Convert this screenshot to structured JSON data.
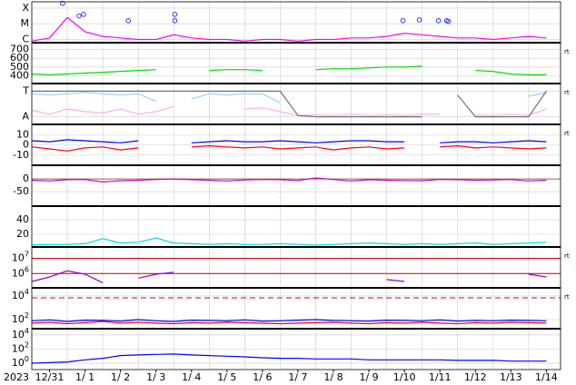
{
  "chart_data": {
    "type": "multi-panel",
    "year": "2023",
    "xlim": [
      0,
      14.9
    ],
    "xticks": [
      {
        "value": 0.5,
        "label": "12/31"
      },
      {
        "value": 1.5,
        "label": "1/ 1"
      },
      {
        "value": 2.5,
        "label": "1/ 2"
      },
      {
        "value": 3.5,
        "label": "1/ 3"
      },
      {
        "value": 4.5,
        "label": "1/ 4"
      },
      {
        "value": 5.5,
        "label": "1/ 5"
      },
      {
        "value": 6.5,
        "label": "1/ 6"
      },
      {
        "value": 7.5,
        "label": "1/ 7"
      },
      {
        "value": 8.5,
        "label": "1/ 8"
      },
      {
        "value": 9.5,
        "label": "1/ 9"
      },
      {
        "value": 10.5,
        "label": "1/10"
      },
      {
        "value": 11.5,
        "label": "1/11"
      },
      {
        "value": 12.5,
        "label": "1/12"
      },
      {
        "value": 13.5,
        "label": "1/13"
      },
      {
        "value": 14.5,
        "label": "1/14"
      }
    ],
    "xgrid": [
      1,
      2,
      3,
      4,
      5,
      6,
      7,
      8,
      9,
      10,
      11,
      12,
      13,
      14
    ],
    "x": [
      0,
      0.5,
      1,
      1.5,
      2,
      2.5,
      3,
      3.5,
      4,
      4.5,
      5,
      5.5,
      6,
      6.5,
      7,
      7.5,
      8,
      8.5,
      9,
      9.5,
      10,
      10.5,
      11,
      11.5,
      12,
      12.5,
      13,
      13.5,
      14,
      14.5
    ],
    "panels": [
      {
        "type": "line",
        "ylim": [
          -6.2,
          -3.6
        ],
        "yticks": [
          {
            "value": -6,
            "label": "C"
          },
          {
            "value": -5,
            "label": "M"
          },
          {
            "value": -4,
            "label": "X"
          }
        ],
        "series": [
          {
            "color": "#ff00ff",
            "values": [
              -6.1,
              -5.9,
              -4.6,
              -5.5,
              -5.8,
              -5.9,
              -6.0,
              -6.0,
              -5.7,
              -5.9,
              -6.0,
              -6.0,
              -6.1,
              -6.0,
              -6.0,
              -6.1,
              -6.0,
              -6.0,
              -5.9,
              -5.9,
              -5.8,
              -5.6,
              -5.7,
              -5.8,
              -5.9,
              -5.9,
              -6.0,
              -5.9,
              -5.8,
              -5.9
            ]
          }
        ],
        "events": {
          "color": "#3333ff",
          "x": [
            0.87,
            1.33,
            1.46,
            2.72,
            4.03,
            4.03,
            10.46,
            10.92,
            11.46,
            11.69,
            11.74
          ],
          "values": [
            -3.7,
            -4.5,
            -4.4,
            -4.8,
            -4.4,
            -4.8,
            -4.8,
            -4.75,
            -4.8,
            -4.8,
            -4.85
          ]
        }
      },
      {
        "type": "line",
        "ylim": [
          310,
          780
        ],
        "yticks": [
          400,
          500,
          600,
          700
        ],
        "right_label": "rt",
        "series": [
          {
            "color": "#00dd00",
            "values": [
              420,
              410,
              420,
              430,
              440,
              450,
              460,
              470,
              null,
              null,
              460,
              470,
              470,
              460,
              null,
              null,
              470,
              480,
              480,
              490,
              500,
              500,
              510,
              null,
              null,
              460,
              450,
              420,
              410,
              410
            ]
          }
        ]
      },
      {
        "type": "line",
        "ylim": [
          -0.3,
          1.3
        ],
        "yticks": [
          {
            "value": 1,
            "label": "T"
          },
          {
            "value": 0,
            "label": "A"
          }
        ],
        "right_label": "rt",
        "series": [
          {
            "color": "#99ccff",
            "values": [
              0.9,
              0.85,
              0.9,
              0.95,
              0.9,
              0.85,
              0.9,
              0.6,
              null,
              0.7,
              0.9,
              0.85,
              0.9,
              0.9,
              0.55,
              null,
              null,
              null,
              null,
              null,
              null,
              null,
              null,
              null,
              null,
              null,
              null,
              null,
              0.8,
              0.95
            ]
          },
          {
            "color": "#ffaaee",
            "values": [
              0.25,
              0.1,
              0.3,
              0.2,
              0.15,
              0.3,
              0.1,
              0.2,
              0.4,
              null,
              0.2,
              null,
              0.3,
              0.35,
              0.2,
              0.05,
              0.08,
              0.05,
              0.1,
              0.05,
              0.08,
              0.05,
              0.1,
              0.1,
              null,
              0.08,
              0.05,
              0.1,
              0.05,
              0.3
            ]
          },
          {
            "color": "#667766",
            "values": [
              1,
              1,
              1,
              1,
              1,
              1,
              1,
              1,
              1,
              1,
              1,
              1,
              1,
              1,
              1,
              0.05,
              0,
              0,
              0,
              0,
              0,
              0,
              0,
              null,
              0.85,
              0,
              0,
              0,
              0,
              1
            ]
          }
        ]
      },
      {
        "type": "line",
        "ylim": [
          -20,
          20
        ],
        "yticks": [
          10,
          0,
          -10
        ],
        "right_label": "rt",
        "series": [
          {
            "color": "#0000ff",
            "values": [
              4,
              3,
              5,
              4,
              3,
              2,
              4,
              null,
              null,
              2,
              3,
              4,
              3,
              3,
              4,
              3,
              2,
              3,
              4,
              4,
              3,
              3,
              null,
              2,
              3,
              3,
              2,
              3,
              4,
              3
            ]
          },
          {
            "color": "#ff0000",
            "values": [
              -2,
              -4,
              -6,
              -3,
              -2,
              -5,
              -3,
              null,
              null,
              -2,
              -1,
              -2,
              -3,
              -2,
              -4,
              -3,
              -2,
              -5,
              -3,
              -2,
              -4,
              -3,
              null,
              -2,
              -1,
              -3,
              -2,
              -3,
              -4,
              -3
            ]
          }
        ]
      },
      {
        "type": "line",
        "ylim": [
          -107,
          54
        ],
        "yticks": [
          0,
          -50
        ],
        "hlines": [
          {
            "value": 0,
            "color": "#996633",
            "dash": false
          }
        ],
        "series": [
          {
            "color": "#cc00cc",
            "values": [
              -5,
              -8,
              -3,
              -2,
              -12,
              -7,
              -5,
              -2,
              0,
              -3,
              -5,
              -8,
              -4,
              -2,
              -3,
              -6,
              4,
              -2,
              -8,
              -3,
              -5,
              -6,
              -7,
              -2,
              -3,
              -5,
              -4,
              -2,
              -8,
              -5
            ]
          }
        ]
      },
      {
        "type": "line",
        "ylim": [
          2.5,
          58.75
        ],
        "yticks": [
          20,
          40
        ],
        "series": [
          {
            "color": "#00dddd",
            "values": [
              5,
              6,
              6,
              7,
              14,
              8,
              9,
              15,
              8,
              7,
              6,
              7,
              6,
              6,
              7,
              6,
              5,
              6,
              7,
              8,
              7,
              6,
              7,
              6,
              7,
              8,
              6,
              7,
              8,
              9
            ]
          }
        ]
      },
      {
        "type": "line",
        "log": true,
        "ylim": [
          115000,
          56000000
        ],
        "yticks": [
          {
            "value": 1000000,
            "label": "10^6"
          },
          {
            "value": 10000000,
            "label": "10^7"
          }
        ],
        "right_label": "rt",
        "hlines": [
          {
            "value": 1000000,
            "color": "#cc0000",
            "dash": false
          },
          {
            "value": 10000000,
            "color": "#cc0000",
            "dash": false
          }
        ],
        "series": [
          {
            "color": "#9900cc",
            "values": [
              300000,
              600000,
              1500000,
              900000,
              250000,
              null,
              500000,
              900000,
              1200000,
              null,
              null,
              null,
              null,
              null,
              null,
              null,
              null,
              null,
              null,
              null,
              400000,
              300000,
              null,
              null,
              null,
              null,
              null,
              null,
              900000,
              600000
            ]
          }
        ]
      },
      {
        "type": "line",
        "log": true,
        "ylim": [
          17,
          49000
        ],
        "yticks": [
          {
            "value": 100,
            "label": "10^2"
          },
          {
            "value": 10000,
            "label": "10^4"
          }
        ],
        "right_label": "rt",
        "hlines": [
          {
            "value": 7000,
            "color": "#dd0000",
            "dash": true
          }
        ],
        "series": [
          {
            "color": "#0000ff",
            "values": [
              80,
              95,
              70,
              90,
              85,
              75,
              100,
              80,
              70,
              90,
              85,
              80,
              95,
              75,
              80,
              90,
              100,
              85,
              80,
              75,
              90,
              85,
              80,
              95,
              75,
              85,
              80,
              90,
              85,
              80
            ]
          },
          {
            "color": "#ff0000",
            "values": [
              50,
              60,
              45,
              55,
              70,
              50,
              60,
              50,
              45,
              55,
              50,
              60,
              55,
              50,
              45,
              50,
              55,
              60,
              50,
              45,
              55,
              50,
              60,
              50,
              45,
              55,
              50,
              60,
              55,
              50
            ]
          }
        ]
      },
      {
        "type": "line",
        "log": true,
        "ylim": [
          0.126,
          79000
        ],
        "yticks": [
          {
            "value": 1,
            "label": "10^0"
          },
          {
            "value": 100,
            "label": "10^2"
          },
          {
            "value": 10000,
            "label": "10^4"
          }
        ],
        "series": [
          {
            "color": "#0000ff",
            "values": [
              1,
              1.2,
              1.5,
              3,
              5,
              12,
              15,
              18,
              20,
              15,
              12,
              10,
              8,
              6,
              5,
              5,
              4,
              4,
              4,
              3,
              3,
              3,
              3,
              3,
              2.5,
              2.5,
              2.5,
              2,
              2,
              2
            ]
          }
        ]
      }
    ]
  }
}
